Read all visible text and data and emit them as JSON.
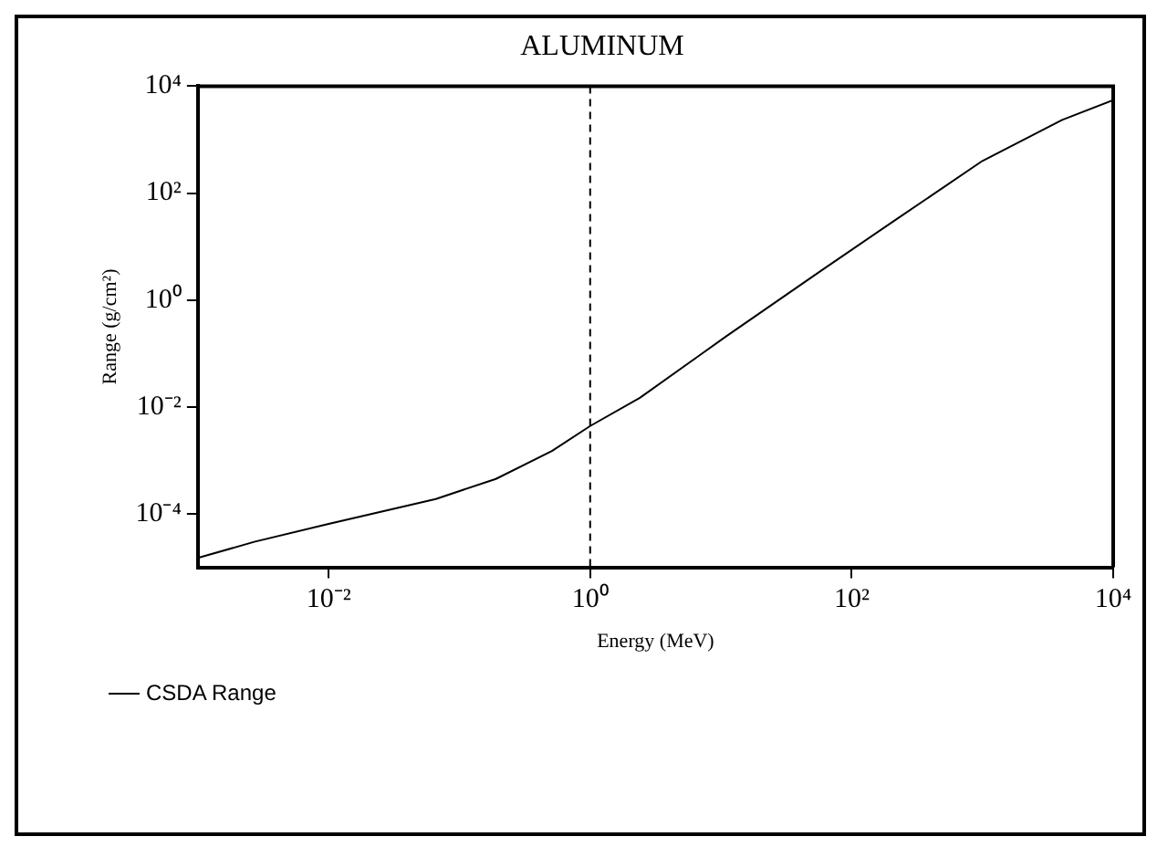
{
  "chart_data": {
    "type": "line",
    "title": "ALUMINUM",
    "xlabel": "Energy (MeV)",
    "ylabel": "Range (g/cm²)",
    "log": "xy",
    "grid": false,
    "legend": "bottom left",
    "marker": "none",
    "line_style": "solid",
    "xlim": [
      0.001,
      10000
    ],
    "ylim": [
      1e-05,
      10000
    ],
    "xticks": [
      {
        "value": 0.01,
        "label": "10⁻²"
      },
      {
        "value": 1,
        "label": "10⁰"
      },
      {
        "value": 100,
        "label": "10²"
      },
      {
        "value": 10000,
        "label": "10⁴"
      }
    ],
    "yticks": [
      {
        "value": 0.0001,
        "label": "10⁻⁴"
      },
      {
        "value": 0.01,
        "label": "10⁻²"
      },
      {
        "value": 1,
        "label": "10⁰"
      },
      {
        "value": 100,
        "label": "10²"
      },
      {
        "value": 10000,
        "label": "10⁴"
      }
    ],
    "x": [
      0.001,
      0.0027,
      0.01,
      0.066,
      0.19,
      0.51,
      1,
      2.4,
      5.9,
      11,
      59,
      214,
      1000,
      4070,
      10000
    ],
    "series": [
      {
        "name": "CSDA Range",
        "color": "#000000",
        "values": [
          1.5e-05,
          3e-05,
          6.5e-05,
          0.00019,
          0.00045,
          0.0015,
          0.0044,
          0.0148,
          0.071,
          0.21,
          3.6,
          31,
          400,
          2340,
          5500
        ]
      }
    ],
    "ref_lines": [
      {
        "axis": "x",
        "value": 1,
        "color": "#000000",
        "line_style": "dashed"
      }
    ]
  }
}
